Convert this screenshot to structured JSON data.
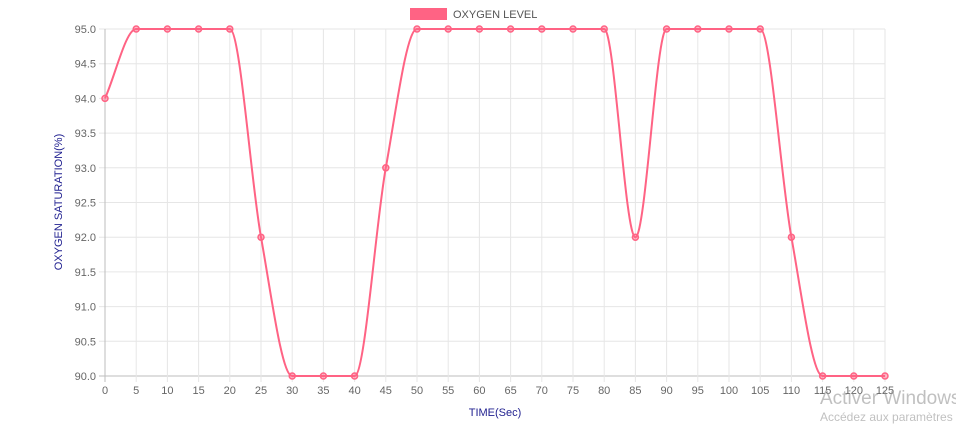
{
  "chart_data": {
    "type": "line",
    "x": [
      0,
      5,
      10,
      15,
      20,
      25,
      30,
      35,
      40,
      45,
      50,
      55,
      60,
      65,
      70,
      75,
      80,
      85,
      90,
      95,
      100,
      105,
      110,
      115,
      120,
      125
    ],
    "series": [
      {
        "name": "OXYGEN LEVEL",
        "values": [
          94,
          95,
          95,
          95,
          95,
          92,
          90,
          90,
          90,
          93,
          95,
          95,
          95,
          95,
          95,
          95,
          95,
          92,
          95,
          95,
          95,
          95,
          92,
          90,
          90,
          90
        ],
        "color": "#ff6384"
      }
    ],
    "x_ticks": [
      "0",
      "5",
      "10",
      "15",
      "20",
      "25",
      "30",
      "35",
      "40",
      "45",
      "50",
      "55",
      "60",
      "65",
      "70",
      "75",
      "80",
      "85",
      "90",
      "95",
      "100",
      "105",
      "110",
      "115",
      "120",
      "125"
    ],
    "y_ticks": [
      "95.0",
      "94.5",
      "94.0",
      "93.5",
      "93.0",
      "92.5",
      "92.0",
      "91.5",
      "91.0",
      "90.5",
      "90.0"
    ],
    "xlabel": "TIME(Sec)",
    "ylabel": "OXYGEN SATURATION(%)",
    "xlim": [
      0,
      125
    ],
    "ylim": [
      90,
      95
    ],
    "grid": true,
    "legend_position": "top"
  },
  "watermark": {
    "line1": "Activer Windows",
    "line2": "Accédez aux paramètres"
  }
}
